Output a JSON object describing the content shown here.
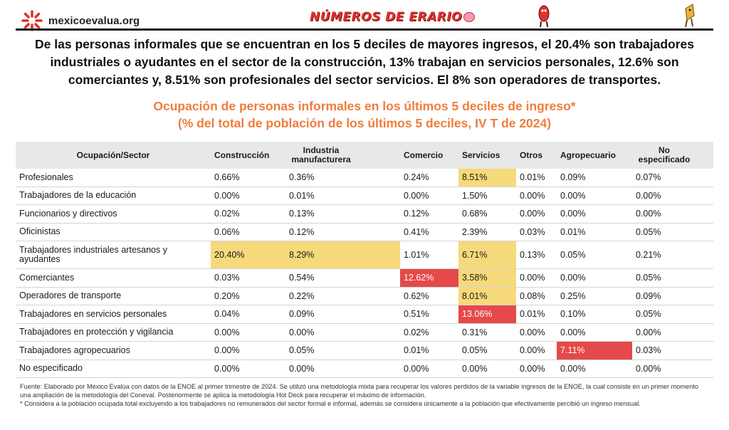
{
  "header": {
    "logo_text": "mexicoevalua.org",
    "brand_text": "NÚMEROS DE ERARIO"
  },
  "summary": "De las personas informales que se encuentran en los 5 deciles de mayores ingresos, el 20.4% son trabajadores industriales o ayudantes en el sector de la construcción, 13% trabajan en servicios personales, 12.6% son comerciantes y, 8.51% son profesionales del sector servicios. El 8% son operadores de transportes.",
  "title_line1": "Ocupación de personas informales en los últimos 5 deciles de ingreso*",
  "title_line2": "(% del total de población de los últimos 5 deciles, IV T de 2024)",
  "colors": {
    "title": "#f07d3c",
    "highlight_yellow": "#f6d97a",
    "highlight_red": "#e5494a"
  },
  "table": {
    "headers": [
      "Ocupación/Sector",
      "Construcción",
      "Industria manufacturera",
      "Comercio",
      "Servicios",
      "Otros",
      "Agropecuario",
      "No especificado"
    ],
    "rows": [
      {
        "label": "Profesionales",
        "values": [
          "0.66%",
          "0.36%",
          "0.24%",
          "8.51%",
          "0.01%",
          "0.09%",
          "0.07%"
        ],
        "hl": [
          "",
          "",
          "",
          "y",
          "",
          "",
          ""
        ]
      },
      {
        "label": "Trabajadores de la educación",
        "values": [
          "0.00%",
          "0.01%",
          "0.00%",
          "1.50%",
          "0.00%",
          "0.00%",
          "0.00%"
        ],
        "hl": [
          "",
          "",
          "",
          "",
          "",
          "",
          ""
        ]
      },
      {
        "label": "Funcionarios y directivos",
        "values": [
          "0.02%",
          "0.13%",
          "0.12%",
          "0.68%",
          "0.00%",
          "0.00%",
          "0.00%"
        ],
        "hl": [
          "",
          "",
          "",
          "",
          "",
          "",
          ""
        ]
      },
      {
        "label": "Oficinistas",
        "values": [
          "0.06%",
          "0.12%",
          "0.41%",
          "2.39%",
          "0.03%",
          "0.01%",
          "0.05%"
        ],
        "hl": [
          "",
          "",
          "",
          "",
          "",
          "",
          ""
        ]
      },
      {
        "label": "Trabajadores industriales artesanos y ayudantes",
        "values": [
          "20.40%",
          "8.29%",
          "1.01%",
          "6.71%",
          "0.13%",
          "0.05%",
          "0.21%"
        ],
        "hl": [
          "y",
          "y",
          "",
          "y",
          "",
          "",
          ""
        ],
        "tall": true
      },
      {
        "label": "Comerciantes",
        "values": [
          "0.03%",
          "0.54%",
          "12.62%",
          "3.58%",
          "0.00%",
          "0.00%",
          "0.05%"
        ],
        "hl": [
          "",
          "",
          "r",
          "y",
          "",
          "",
          ""
        ]
      },
      {
        "label": "Operadores de transporte",
        "values": [
          "0.20%",
          "0.22%",
          "0.62%",
          "8.01%",
          "0.08%",
          "0.25%",
          "0.09%"
        ],
        "hl": [
          "",
          "",
          "",
          "y",
          "",
          "",
          ""
        ]
      },
      {
        "label": "Trabajadores en servicios personales",
        "values": [
          "0.04%",
          "0.09%",
          "0.51%",
          "13.06%",
          "0.01%",
          "0.10%",
          "0.05%"
        ],
        "hl": [
          "",
          "",
          "",
          "r",
          "",
          "",
          ""
        ]
      },
      {
        "label": "Trabajadores en protección y vigilancia",
        "values": [
          "0.00%",
          "0.00%",
          "0.02%",
          "0.31%",
          "0.00%",
          "0.00%",
          "0.00%"
        ],
        "hl": [
          "",
          "",
          "",
          "",
          "",
          "",
          ""
        ]
      },
      {
        "label": "Trabajadores agropecuarios",
        "values": [
          "0.00%",
          "0.05%",
          "0.01%",
          "0.05%",
          "0.00%",
          "7.11%",
          "0.03%"
        ],
        "hl": [
          "",
          "",
          "",
          "",
          "",
          "r",
          ""
        ]
      },
      {
        "label": "No especificado",
        "values": [
          "0.00%",
          "0.00%",
          "0.00%",
          "0.00%",
          "0.00%",
          "0.00%",
          "0.00%"
        ],
        "hl": [
          "",
          "",
          "",
          "",
          "",
          "",
          ""
        ]
      }
    ]
  },
  "footer": {
    "source": "Fuente: Elaborado por México Evalúa con datos de la ENOE al primer trimestre de 2024. Se utilizó una metodología mixta para recuperar los valores perdidos de la variable ingresos de la ENOE, la cual consiste en un primer momento una ampliación de la metodología del Coneval. Posteriormente se aplica la metodología Hot Deck para recuperar el máximo de información.",
    "note": "* Considera a la población ocupada total excluyendo a los trabajadores no remunerados del sector formal e informal, además se considera únicamente a la población que efectivamente percibió un ingreso mensual."
  }
}
